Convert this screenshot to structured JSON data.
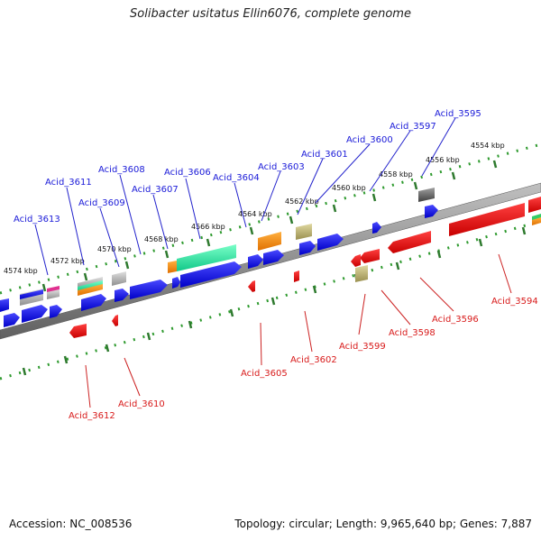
{
  "title": "Solibacter usitatus Ellin6076, complete genome",
  "footer": {
    "accession": "Accession: NC_008536",
    "stats": "Topology: circular; Length: 9,965,640 bp; Genes: 7,887"
  },
  "colors": {
    "top_strand_label": "#1a1ad8",
    "bottom_strand_label": "#d81a1a",
    "backbone": "#808080",
    "tick": "#2e9a2e"
  },
  "scale": {
    "unit": "kbp",
    "ticks": [
      "4554 kbp",
      "4556 kbp",
      "4558 kbp",
      "4560 kbp",
      "4562 kbp",
      "4564 kbp",
      "4566 kbp",
      "4568 kbp",
      "4570 kbp",
      "4572 kbp",
      "4574 kbp"
    ]
  },
  "genes_top": [
    "Acid_3595",
    "Acid_3597",
    "Acid_3600",
    "Acid_3601",
    "Acid_3603",
    "Acid_3604",
    "Acid_3606",
    "Acid_3607",
    "Acid_3608",
    "Acid_3609",
    "Acid_3611",
    "Acid_3613"
  ],
  "genes_bottom": [
    "Acid_3594",
    "Acid_3596",
    "Acid_3598",
    "Acid_3599",
    "Acid_3602",
    "Acid_3605",
    "Acid_3610",
    "Acid_3612"
  ]
}
